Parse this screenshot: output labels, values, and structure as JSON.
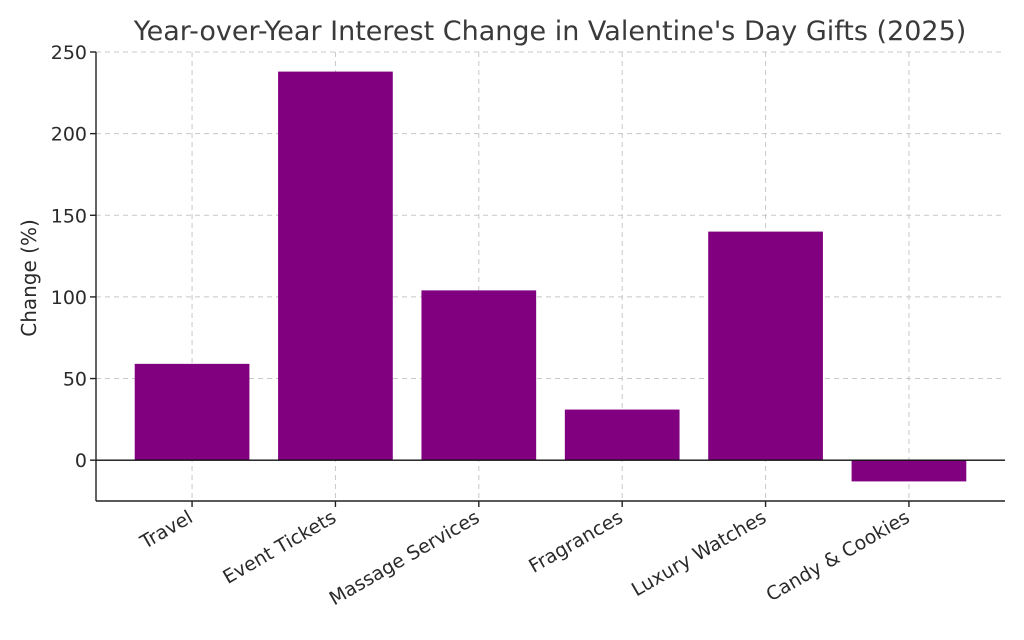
{
  "chart_data": {
    "type": "bar",
    "title": "Year-over-Year Interest Change in Valentine's Day Gifts (2025)",
    "xlabel": "",
    "ylabel": "Change (%)",
    "categories": [
      "Travel",
      "Event Tickets",
      "Massage Services",
      "Fragrances",
      "Luxury Watches",
      "Candy & Cookies"
    ],
    "values": [
      59,
      238,
      104,
      31,
      140,
      -13
    ],
    "ylim": [
      -25,
      250
    ],
    "yticks": [
      0,
      50,
      100,
      150,
      200,
      250
    ],
    "grid": true,
    "bar_color": "#800080"
  }
}
